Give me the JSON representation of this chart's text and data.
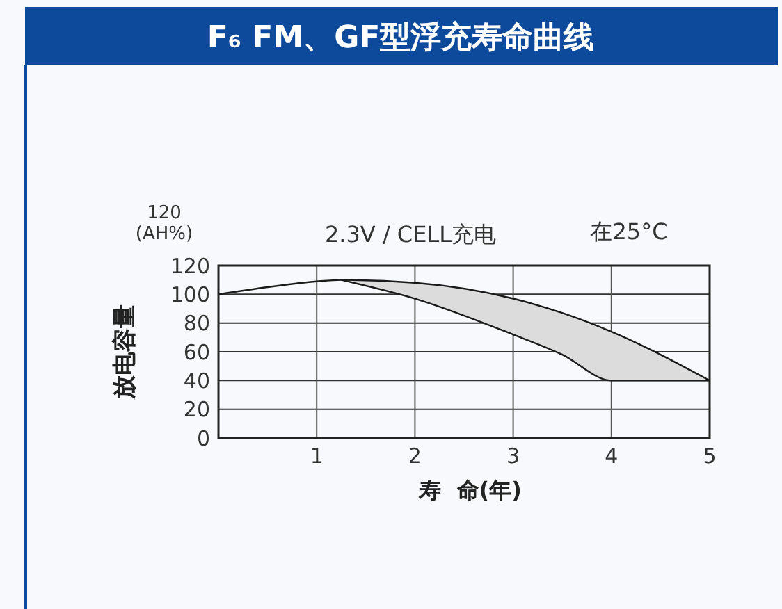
{
  "chart_data": {
    "type": "line",
    "title": "F₆ FM、GF型浮充寿命曲线",
    "xlabel": "寿  命(年)",
    "ylabel": "放电容量",
    "annotations": [
      "120 (AH%)",
      "2.3V / CELL充电",
      "在25°C"
    ],
    "x": [
      0,
      0.5,
      1,
      1.25,
      2,
      3,
      3.5,
      4,
      5
    ],
    "series": [
      {
        "color": "#1a1a1a",
        "values": [
          100,
          105,
          109,
          110,
          108,
          97,
          87,
          74,
          40
        ],
        "lower": [
          null,
          null,
          null,
          110,
          97,
          72,
          58,
          40,
          40
        ],
        "upper": [
          null,
          null,
          null,
          110,
          108,
          97,
          87,
          74,
          40
        ]
      },
      {
        "color": "#1a1a1a",
        "x": [
          1.25,
          2,
          3,
          3.5,
          4,
          5
        ],
        "values": [
          110,
          97,
          72,
          58,
          40,
          40
        ]
      }
    ],
    "xlim": [
      0,
      5
    ],
    "xticks": [
      1,
      2,
      3,
      4,
      5
    ],
    "ylim": [
      0,
      120
    ],
    "yticks": [
      0,
      20,
      40,
      60,
      80,
      100,
      120
    ],
    "grid": true,
    "marker": "none",
    "line_style": "solid"
  }
}
